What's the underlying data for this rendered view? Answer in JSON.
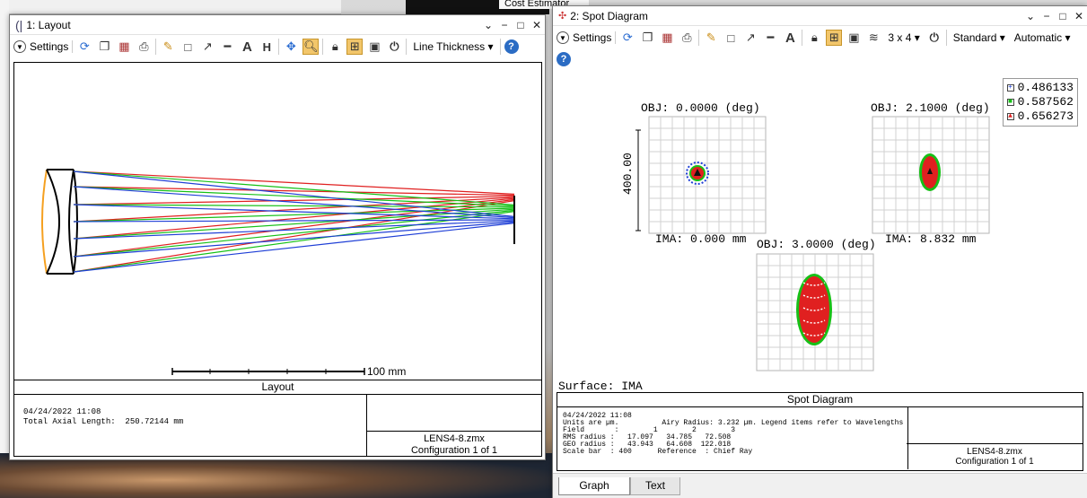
{
  "background": {
    "cost_label": "Cost Estimator"
  },
  "layout_window": {
    "title": "1: Layout",
    "controls": [
      "⌄",
      "−",
      "□",
      "✕"
    ],
    "toolbar": {
      "settings_label": "Settings",
      "line_thickness_label": "Line Thickness",
      "help_label": "?"
    },
    "scale_label": "100 mm",
    "footer": {
      "title": "Layout",
      "info_lines": [
        "04/24/2022 11:08",
        "Total Axial Length:  250.72144 mm"
      ],
      "file_name": "LENS4-8.zmx",
      "configuration": "Configuration 1 of 1"
    }
  },
  "spot_window": {
    "title": "2: Spot Diagram",
    "controls": [
      "⌄",
      "−",
      "□",
      "✕"
    ],
    "toolbar": {
      "settings_label": "Settings",
      "grid_label": "3 x 4",
      "standard_label": "Standard",
      "automatic_label": "Automatic",
      "help_label": "?"
    },
    "legend": [
      {
        "label": "0.486133",
        "color": "#1f3fd6",
        "symbol": "+"
      },
      {
        "label": "0.587562",
        "color": "#17c017",
        "symbol": "■"
      },
      {
        "label": "0.656273",
        "color": "#e02020",
        "symbol": "▲"
      }
    ],
    "spots": [
      {
        "obj": "OBJ: 0.0000 (deg)",
        "ima": "IMA: 0.000 mm",
        "scale": "400.00"
      },
      {
        "obj": "OBJ: 2.1000 (deg)",
        "ima": "IMA: 8.832 mm"
      },
      {
        "obj": "OBJ: 3.0000 (deg)",
        "ima": ""
      }
    ],
    "surface_label": "Surface: IMA",
    "footer": {
      "title": "Spot Diagram",
      "info_lines": [
        "04/24/2022 11:08",
        "Units are µm.          Airy Radius: 3.232 µm. Legend items refer to Wavelengths",
        "Field       :        1        2        3",
        "RMS radius :   17.097   34.785   72.508",
        "GEO radius :   43.943   64.608  122.018",
        "Scale bar  : 400      Reference  : Chief Ray"
      ],
      "file_name": "LENS4-8.zmx",
      "configuration": "Configuration 1 of 1"
    },
    "tabs": [
      "Graph",
      "Text"
    ]
  }
}
